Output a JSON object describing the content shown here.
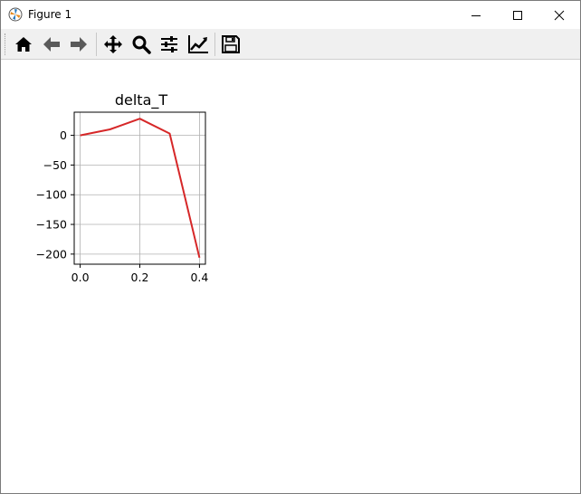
{
  "window": {
    "title": "Figure 1"
  },
  "toolbar": {
    "buttons": [
      {
        "name": "home",
        "icon": "home-icon"
      },
      {
        "name": "back",
        "icon": "arrow-left-icon"
      },
      {
        "name": "forward",
        "icon": "arrow-right-icon"
      },
      {
        "name": "pan",
        "icon": "move-icon"
      },
      {
        "name": "zoom",
        "icon": "magnifier-icon"
      },
      {
        "name": "configure-subplots",
        "icon": "sliders-icon"
      },
      {
        "name": "edit-axis",
        "icon": "line-chart-icon"
      },
      {
        "name": "save",
        "icon": "floppy-disk-icon"
      }
    ]
  },
  "colors": {
    "line": "#d62728",
    "grid": "#b0b0b0",
    "toolbar_bg": "#f0f0f0"
  },
  "chart_data": {
    "type": "line",
    "title": "delta_T",
    "xlabel": "",
    "ylabel": "",
    "x": [
      0.0,
      0.1,
      0.2,
      0.3,
      0.4
    ],
    "series": [
      {
        "values": [
          0,
          10,
          28,
          3,
          -206
        ]
      }
    ],
    "xlim": [
      -0.02,
      0.42
    ],
    "ylim": [
      -217,
      39
    ],
    "xticks": [
      0.0,
      0.2,
      0.4
    ],
    "xtick_labels": [
      "0.0",
      "0.2",
      "0.4"
    ],
    "yticks": [
      0,
      -50,
      -100,
      -150,
      -200
    ],
    "ytick_labels": [
      "0",
      "−50",
      "−100",
      "−150",
      "−200"
    ],
    "grid": true,
    "legend": "none"
  }
}
